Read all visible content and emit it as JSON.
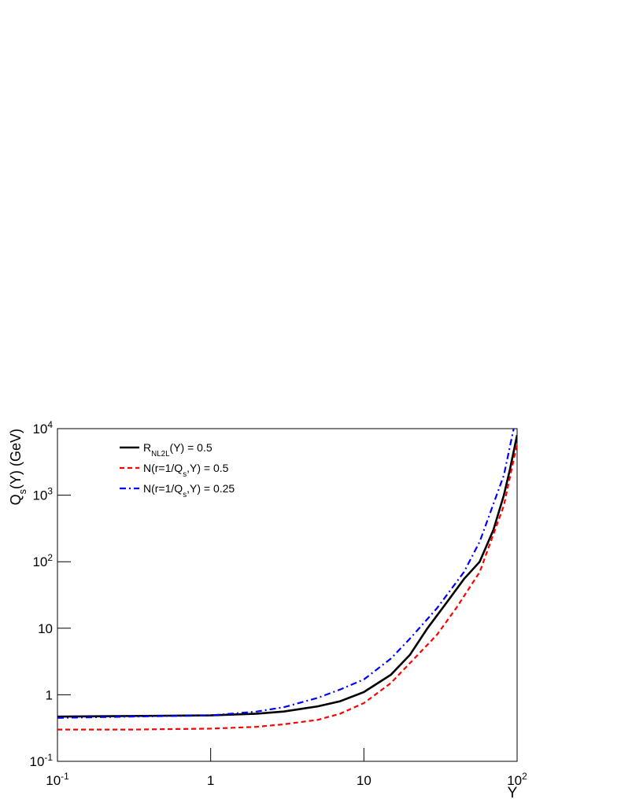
{
  "chart_data": {
    "type": "line",
    "xlabel": "Y",
    "ylabel": "Q_{s}(Y) (GeV)",
    "xscale": "log",
    "yscale": "log",
    "xlim": [
      0.1,
      100
    ],
    "ylim": [
      0.1,
      10000
    ],
    "xticks": [
      {
        "value": 0.1,
        "label": "10^{-1}"
      },
      1,
      10,
      {
        "value": 100,
        "label": "10^{2}"
      }
    ],
    "yticks": [
      {
        "value": 0.1,
        "label": "10^{-1}"
      },
      1,
      10,
      {
        "value": 100,
        "label": "10^{2}"
      },
      {
        "value": 1000,
        "label": "10^{3}"
      },
      {
        "value": 10000,
        "label": "10^{4}"
      }
    ],
    "legend": "top-left",
    "series": [
      {
        "name": "R_{NL2L}(Y) = 0.5",
        "color": "#000000",
        "linestyle": "solid",
        "x": [
          0.1,
          0.3,
          1,
          2,
          3,
          5,
          7,
          10,
          15,
          20,
          26,
          35,
          45,
          57,
          70,
          82,
          90,
          100
        ],
        "values": [
          0.47,
          0.48,
          0.49,
          0.52,
          0.56,
          0.67,
          0.8,
          1.1,
          2.0,
          4,
          10,
          25,
          55,
          100,
          300,
          1000,
          2500,
          8000
        ]
      },
      {
        "name": "N(r=1/Q_{s},Y) = 0.5",
        "color": "#ff0000",
        "linestyle": "dashed",
        "x": [
          0.1,
          0.3,
          1,
          2,
          3,
          5,
          7,
          10,
          15,
          20,
          30,
          40,
          57,
          82,
          100
        ],
        "values": [
          0.3,
          0.3,
          0.31,
          0.33,
          0.36,
          0.42,
          0.52,
          0.75,
          1.5,
          3,
          8,
          20,
          70,
          700,
          6000
        ]
      },
      {
        "name": "N(r=1/Q_{s},Y) = 0.25",
        "color": "#0000ff",
        "linestyle": "dashdot",
        "x": [
          0.1,
          0.3,
          1,
          2,
          3,
          5,
          7,
          10,
          15,
          20,
          30,
          45,
          57,
          82,
          95
        ],
        "values": [
          0.45,
          0.47,
          0.49,
          0.56,
          0.65,
          0.9,
          1.2,
          1.7,
          3.5,
          7,
          20,
          70,
          200,
          2000,
          10000
        ]
      }
    ]
  }
}
